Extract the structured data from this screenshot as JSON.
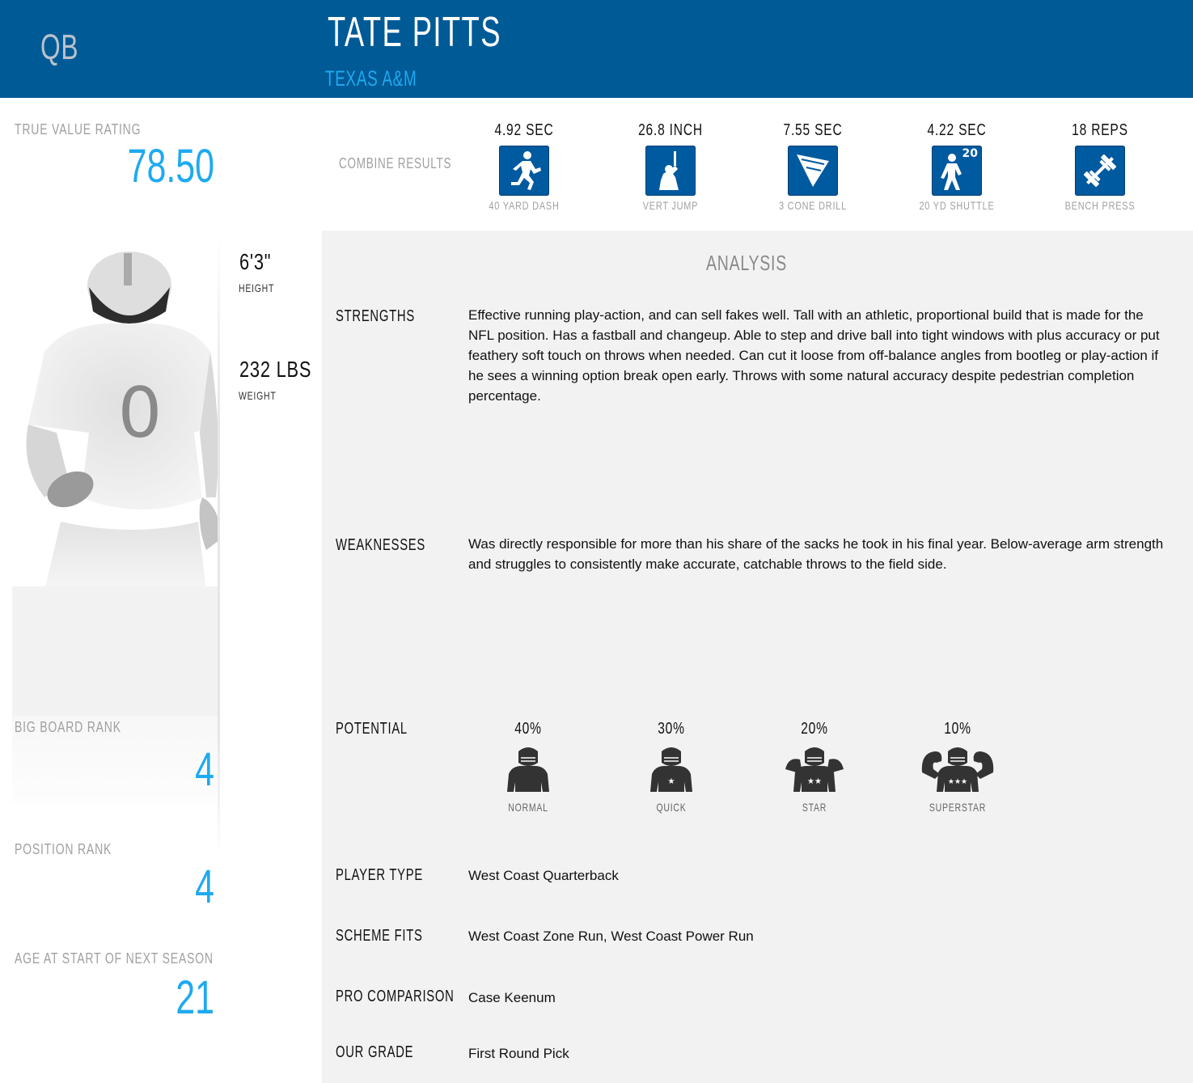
{
  "header": {
    "position": "QB",
    "player_name": "TATE PITTS",
    "school": "TEXAS A&M",
    "bg_color": "#005a96",
    "accent_color": "#1eaaf0"
  },
  "rating": {
    "label": "TRUE VALUE RATING",
    "value": "78.50"
  },
  "combine": {
    "title": "COMBINE RESULTS",
    "items": [
      {
        "value": "4.92 SEC",
        "label": "40 YARD DASH",
        "icon": "sprinter-icon"
      },
      {
        "value": "26.8 INCH",
        "label": "VERT JUMP",
        "icon": "vertical-jump-icon"
      },
      {
        "value": "7.55 SEC",
        "label": "3 CONE DRILL",
        "icon": "cone-icon"
      },
      {
        "value": "4.22 SEC",
        "label": "20 YD SHUTTLE",
        "icon": "shuttle-runner-icon",
        "badge": "20"
      },
      {
        "value": "18 REPS",
        "label": "BENCH PRESS",
        "icon": "barbell-icon"
      }
    ]
  },
  "player_photo": {
    "jersey_number": "0"
  },
  "measurements": {
    "height_value": "6'3\"",
    "height_label": "HEIGHT",
    "weight_value": "232 LBS",
    "weight_label": "WEIGHT"
  },
  "ranks": {
    "big_board_label": "BIG BOARD RANK",
    "big_board_value": "4",
    "position_label": "POSITION RANK",
    "position_value": "4",
    "age_label": "AGE AT START OF NEXT SEASON",
    "age_value": "21"
  },
  "analysis": {
    "title": "ANALYSIS",
    "strengths_label": "STRENGTHS",
    "strengths_text": "Effective running play-action, and can sell fakes well. Tall with an athletic, proportional build that is made for the NFL position. Has a fastball and changeup. Able to step and drive ball into tight windows with plus accuracy or put feathery soft touch on throws when needed. Can cut it loose from off-balance angles from bootleg or play-action if he sees a winning option break open early. Throws with some natural accuracy despite pedestrian completion percentage.",
    "weaknesses_label": "WEAKNESSES",
    "weaknesses_text": "Was directly responsible for more than his share of the sacks he took in his final year. Below-average arm strength and struggles to consistently make accurate, catchable throws to the field side.",
    "potential_label": "POTENTIAL",
    "potential": [
      {
        "pct": "40%",
        "label": "NORMAL",
        "icon": "player-normal-icon"
      },
      {
        "pct": "30%",
        "label": "QUICK",
        "icon": "player-quick-icon"
      },
      {
        "pct": "20%",
        "label": "STAR",
        "icon": "player-star-icon"
      },
      {
        "pct": "10%",
        "label": "SUPERSTAR",
        "icon": "player-superstar-icon"
      }
    ],
    "player_type_label": "PLAYER TYPE",
    "player_type_value": "West Coast Quarterback",
    "scheme_fits_label": "SCHEME FITS",
    "scheme_fits_value": "West Coast Zone Run, West Coast Power Run",
    "pro_comparison_label": "PRO COMPARISON",
    "pro_comparison_value": "Case Keenum",
    "our_grade_label": "OUR GRADE",
    "our_grade_value": "First Round Pick"
  }
}
